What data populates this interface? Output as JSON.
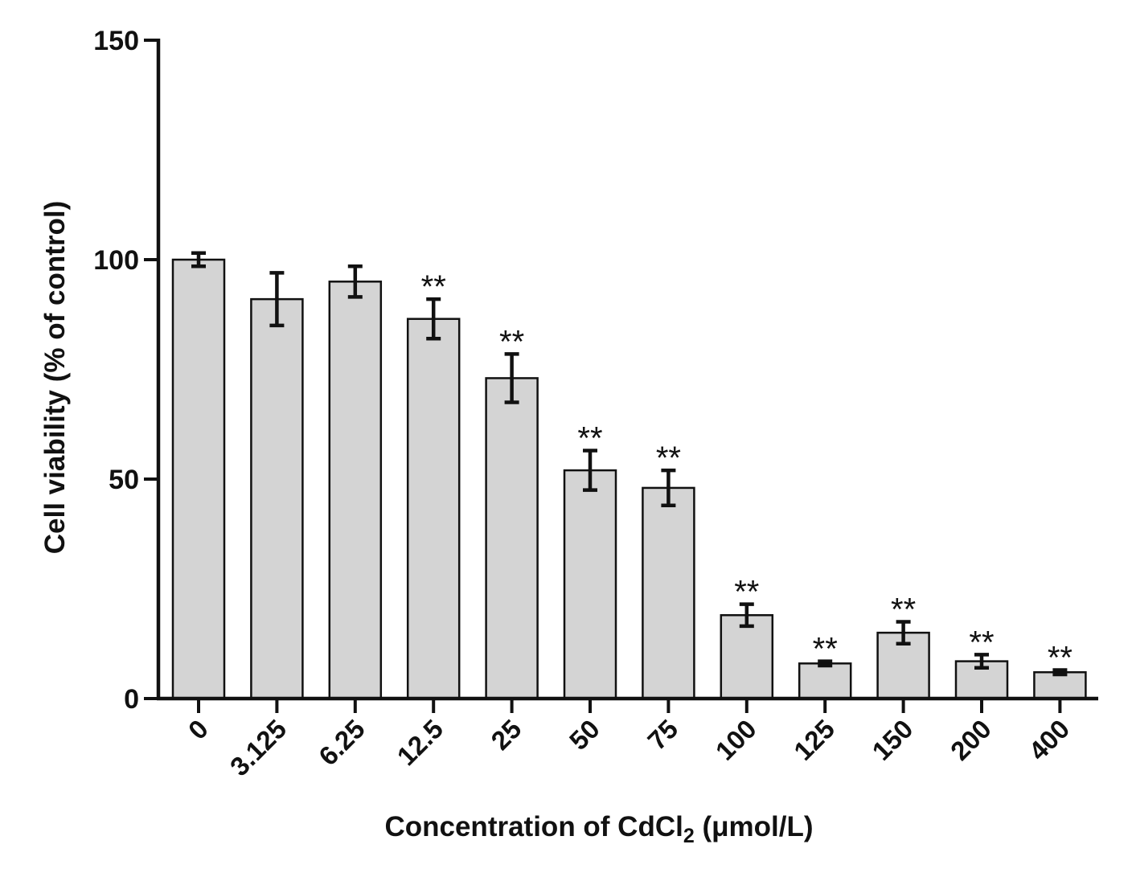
{
  "chart_data": {
    "type": "bar",
    "title": "",
    "xlabel_prefix": "Concentration of CdCl",
    "xlabel_subscript": "2",
    "xlabel_suffix": " (μmol/L)",
    "ylabel": "Cell viability (% of control)",
    "ylim": [
      0,
      150
    ],
    "yticks": [
      "0",
      "50",
      "100",
      "150"
    ],
    "categories": [
      "0",
      "3.125",
      "6.25",
      "12.5",
      "25",
      "50",
      "75",
      "100",
      "125",
      "150",
      "200",
      "400"
    ],
    "values": [
      100,
      91,
      95,
      86.5,
      73,
      52,
      48,
      19,
      8,
      15,
      8.5,
      6
    ],
    "errors": [
      1.5,
      6,
      3.5,
      4.5,
      5.5,
      4.5,
      4,
      2.5,
      0.5,
      2.5,
      1.5,
      0.5
    ],
    "significance": [
      "",
      "",
      "",
      "**",
      "**",
      "**",
      "**",
      "**",
      "**",
      "**",
      "**",
      "**"
    ],
    "bar_color": "#d4d4d4",
    "axis_color": "#111111",
    "grid": false
  }
}
